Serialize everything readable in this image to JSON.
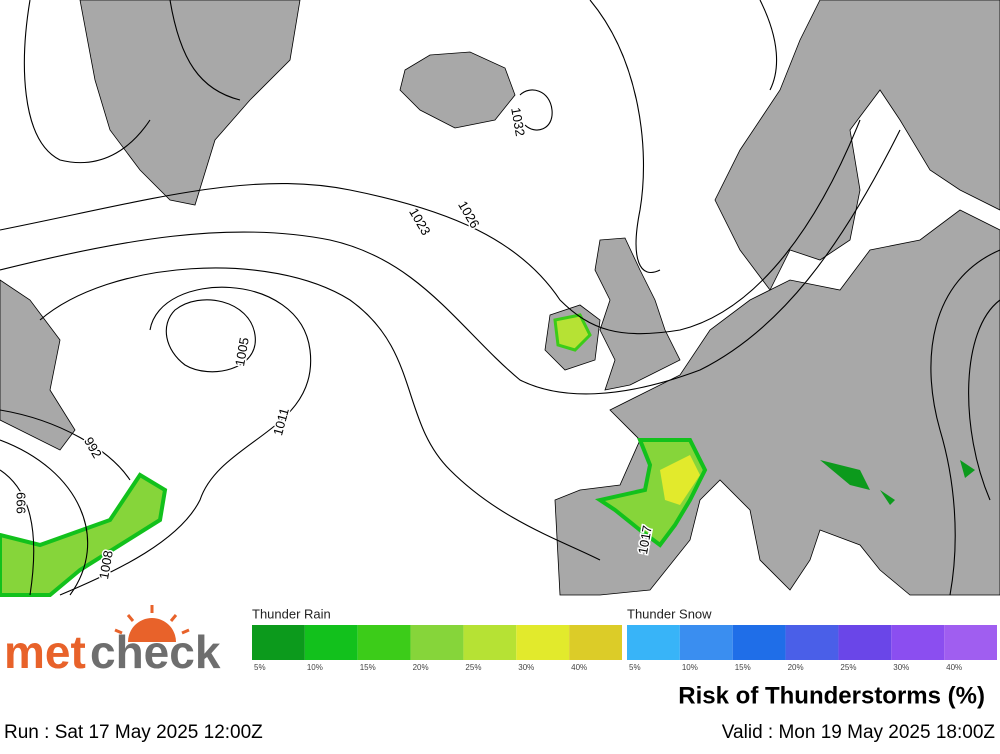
{
  "map": {
    "isobar_labels": [
      "1032",
      "1026",
      "1023",
      "1005",
      "1011",
      "992",
      "999",
      "1008",
      "1017"
    ]
  },
  "legend": {
    "rain": {
      "title": "Thunder Rain",
      "items": [
        {
          "color": "#0c9a1c",
          "label": "5%"
        },
        {
          "color": "#12c11c",
          "label": "10%"
        },
        {
          "color": "#3ccc19",
          "label": "15%"
        },
        {
          "color": "#86d53a",
          "label": "20%"
        },
        {
          "color": "#b6e234",
          "label": "25%"
        },
        {
          "color": "#e2ea2c",
          "label": "30%"
        },
        {
          "color": "#dccc28",
          "label": "40%"
        }
      ]
    },
    "snow": {
      "title": "Thunder Snow",
      "items": [
        {
          "color": "#38b4f8",
          "label": "5%"
        },
        {
          "color": "#3a8ef0",
          "label": "10%"
        },
        {
          "color": "#1f6ee8",
          "label": "15%"
        },
        {
          "color": "#4a5fe8",
          "label": "20%"
        },
        {
          "color": "#6a46e8",
          "label": "25%"
        },
        {
          "color": "#8b4ef0",
          "label": "30%"
        },
        {
          "color": "#a05ef0",
          "label": "40%"
        }
      ]
    }
  },
  "title": "Risk of Thunderstorms (%)",
  "footer": {
    "run": "Run : Sat 17 May 2025 12:00Z",
    "valid": "Valid : Mon 19 May 2025 18:00Z"
  },
  "logo": {
    "met": "met",
    "check": "check"
  }
}
